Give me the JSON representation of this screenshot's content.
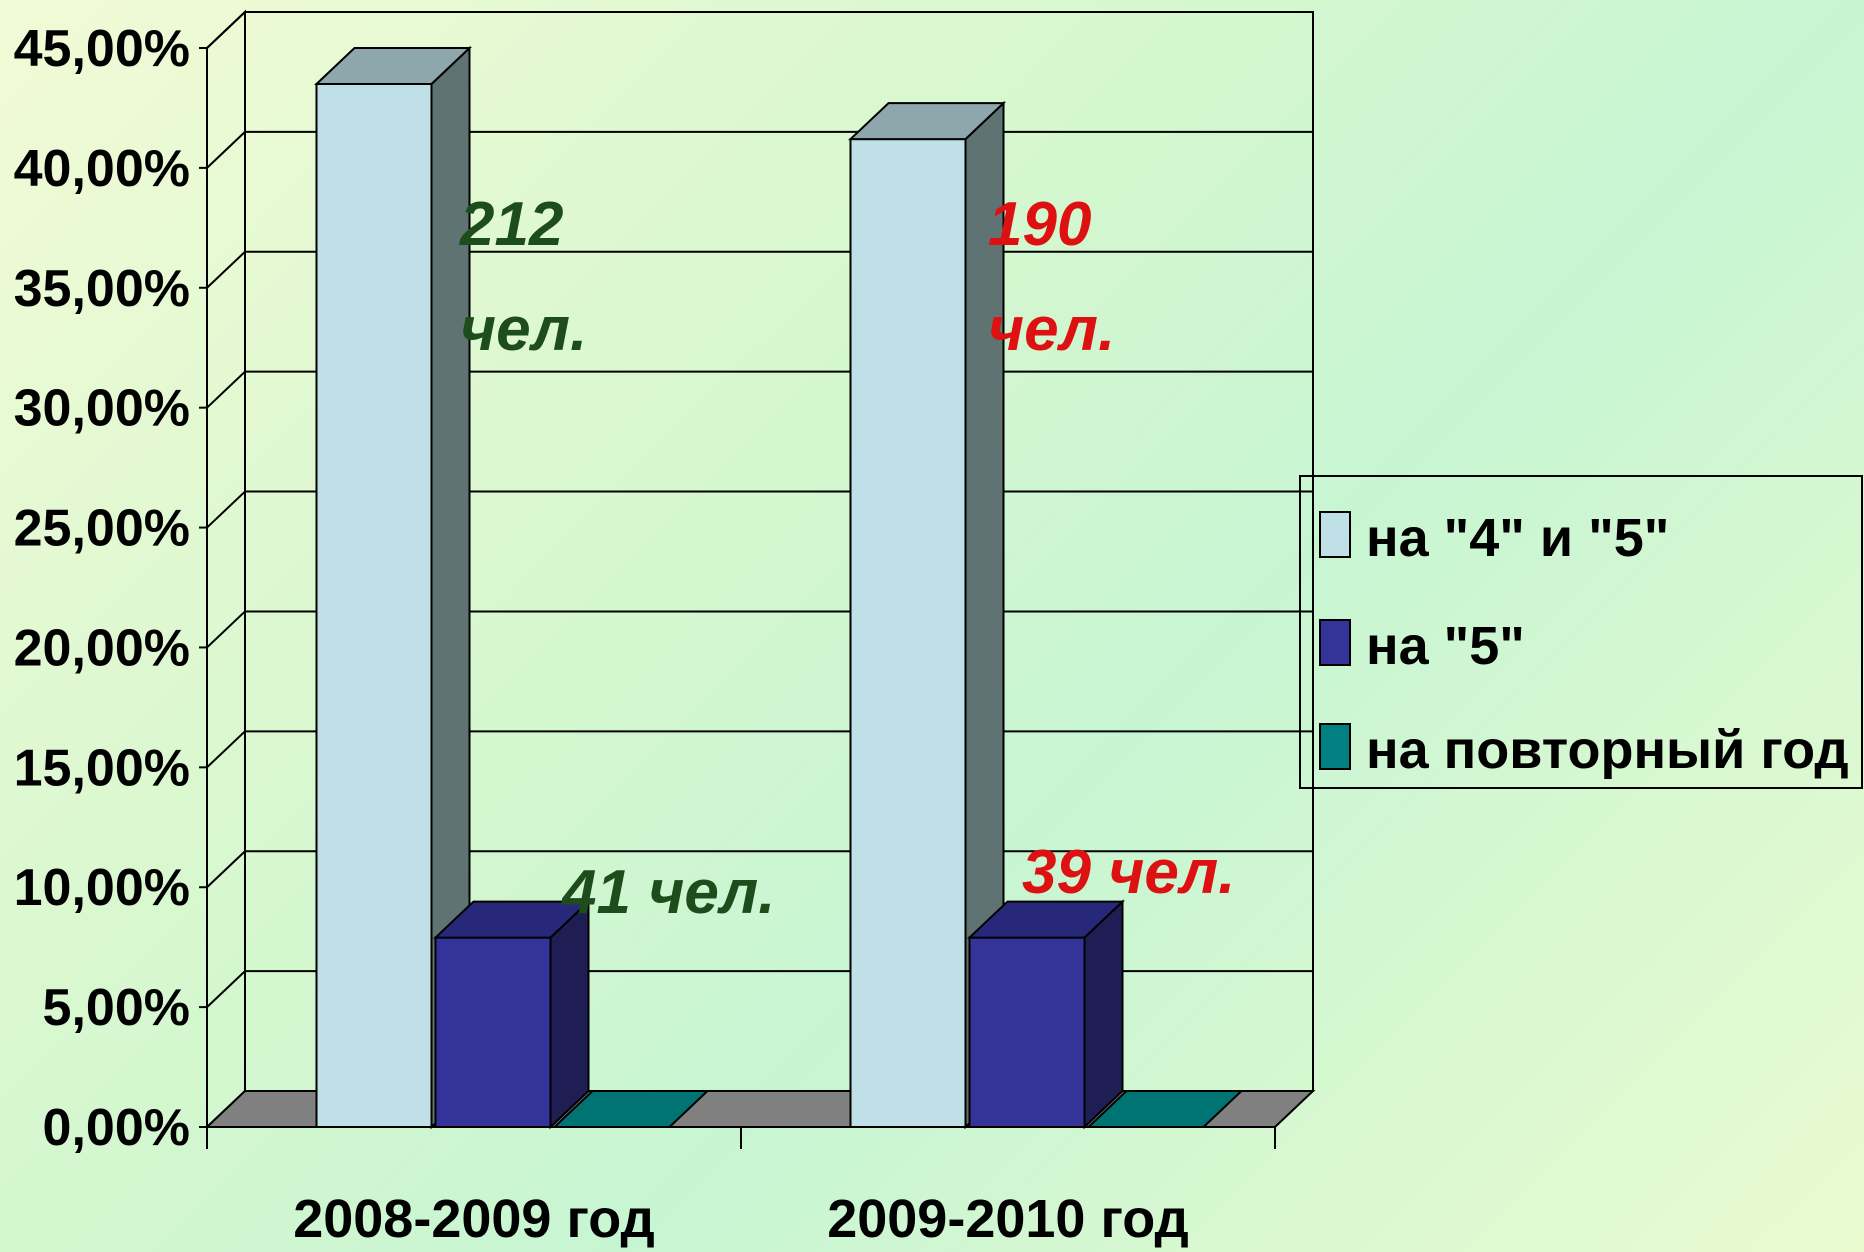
{
  "chart_data": {
    "type": "bar",
    "categories": [
      "2008-2009 год",
      "2009-2010 год"
    ],
    "series": [
      {
        "name": "на \"4\" и \"5\"",
        "values": [
          43.5,
          41.2
        ],
        "color": "#bfe0e6",
        "side": "#5f7372",
        "top": "#8ea7ad"
      },
      {
        "name": "на \"5\"",
        "values": [
          7.9,
          7.9
        ],
        "color": "#333399",
        "side": "#1e1e55",
        "top": "#28287a"
      },
      {
        "name": "на повторный год",
        "values": [
          0,
          0
        ],
        "color": "#008080",
        "side": "#004c4c",
        "top": "#007373"
      }
    ],
    "ylim": [
      0,
      45
    ],
    "yticks": [
      "0,00%",
      "5,00%",
      "10,00%",
      "15,00%",
      "20,00%",
      "25,00%",
      "30,00%",
      "35,00%",
      "40,00%",
      "45,00%"
    ],
    "grid": true,
    "legend": "right",
    "annotations": [
      {
        "text": "212",
        "color": "#1d4d1d"
      },
      {
        "text": "чел.",
        "color": "#1d4d1d"
      },
      {
        "text": "41 чел.",
        "color": "#1d4d1d"
      },
      {
        "text": "190",
        "color": "#dd1111"
      },
      {
        "text": "чел.",
        "color": "#dd1111"
      },
      {
        "text": "39 чел.",
        "color": "#dd1111"
      }
    ]
  }
}
